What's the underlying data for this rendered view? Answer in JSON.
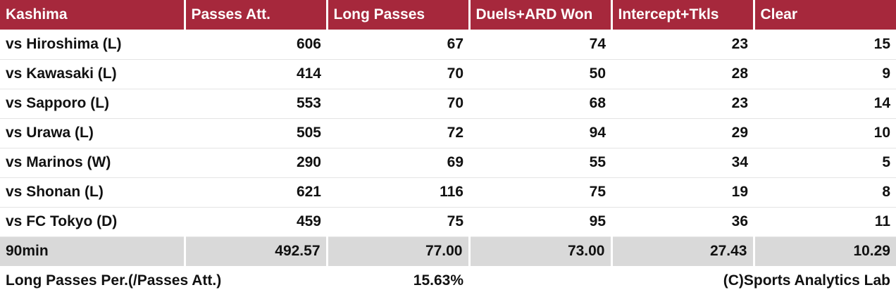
{
  "table": {
    "header": [
      "Kashima",
      "Passes Att.",
      "Long Passes",
      "Duels+ARD Won",
      "Intercept+Tkls",
      "Clear"
    ],
    "rows": [
      [
        "vs Hiroshima (L)",
        "606",
        "67",
        "74",
        "23",
        "15"
      ],
      [
        "vs Kawasaki (L)",
        "414",
        "70",
        "50",
        "28",
        "9"
      ],
      [
        "vs Sapporo (L)",
        "553",
        "70",
        "68",
        "23",
        "14"
      ],
      [
        "vs Urawa (L)",
        "505",
        "72",
        "94",
        "29",
        "10"
      ],
      [
        "vs Marinos (W)",
        "290",
        "69",
        "55",
        "34",
        "5"
      ],
      [
        "vs Shonan (L)",
        "621",
        "116",
        "75",
        "19",
        "8"
      ],
      [
        "vs FC Tokyo (D)",
        "459",
        "75",
        "95",
        "36",
        "11"
      ]
    ],
    "summary": [
      "90min",
      "492.57",
      "77.00",
      "73.00",
      "27.43",
      "10.29"
    ]
  },
  "footer": {
    "label": "Long Passes Per.(/Passes Att.)",
    "value": "15.63%",
    "credit": "(C)Sports Analytics Lab"
  }
}
